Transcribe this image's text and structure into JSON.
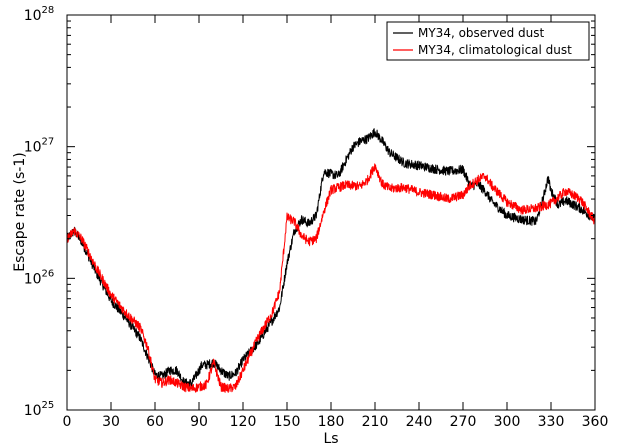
{
  "chart_data": {
    "type": "line",
    "xlabel": "Ls",
    "ylabel": "Escape rate (s-1)",
    "xlim": [
      0,
      360
    ],
    "ylim": [
      1e+25,
      1e+28
    ],
    "yscale": "log",
    "x_ticks": [
      0,
      30,
      60,
      90,
      120,
      150,
      180,
      210,
      240,
      270,
      300,
      330,
      360
    ],
    "y_ticks": [
      {
        "value": 1e+25,
        "base": "10",
        "exp": "25"
      },
      {
        "value": 1e+26,
        "base": "10",
        "exp": "26"
      },
      {
        "value": 1e+27,
        "base": "10",
        "exp": "27"
      },
      {
        "value": 1e+28,
        "base": "10",
        "exp": "28"
      }
    ],
    "grid": false,
    "legend_position": "top-right",
    "series": [
      {
        "name": "MY34, observed dust",
        "color": "#000000",
        "x": [
          0,
          5,
          10,
          20,
          30,
          40,
          50,
          60,
          65,
          70,
          75,
          80,
          85,
          90,
          92,
          95,
          100,
          105,
          110,
          115,
          120,
          130,
          140,
          145,
          150,
          155,
          160,
          165,
          170,
          175,
          180,
          185,
          190,
          195,
          200,
          205,
          210,
          215,
          220,
          230,
          240,
          250,
          260,
          270,
          275,
          280,
          285,
          290,
          300,
          310,
          320,
          325,
          328,
          330,
          335,
          340,
          350,
          360
        ],
        "y": [
          2e+26,
          2.3e+26,
          1.9e+26,
          1.1e+26,
          6.8e+25,
          5e+25,
          3.5e+25,
          1.85e+25,
          1.8e+25,
          2e+25,
          2e+25,
          1.6e+25,
          1.6e+25,
          2e+25,
          2.2e+25,
          2.2e+25,
          2.3e+25,
          2e+25,
          1.8e+25,
          1.9e+25,
          2.4e+25,
          3.2e+25,
          4.8e+25,
          6e+25,
          1.3e+26,
          2.3e+26,
          2.8e+26,
          2.6e+26,
          3e+26,
          6.5e+26,
          6.2e+26,
          6e+26,
          7.8e+26,
          1e+27,
          1.1e+27,
          1.15e+27,
          1.3e+27,
          1.1e+27,
          9e+26,
          7.5e+26,
          7.2e+26,
          6.8e+26,
          6.5e+26,
          6.7e+26,
          5e+26,
          5.2e+26,
          4.6e+26,
          3.8e+26,
          3e+26,
          2.8e+26,
          2.7e+26,
          4.2e+26,
          5.8e+26,
          4.6e+26,
          3.6e+26,
          3.9e+26,
          3.4e+26,
          2.8e+26
        ]
      },
      {
        "name": "MY34, climatological dust",
        "color": "#ff0000",
        "x": [
          0,
          5,
          10,
          20,
          30,
          40,
          50,
          55,
          60,
          65,
          70,
          75,
          80,
          85,
          90,
          95,
          100,
          105,
          110,
          115,
          120,
          130,
          140,
          145,
          150,
          155,
          160,
          165,
          170,
          175,
          180,
          190,
          200,
          205,
          210,
          215,
          220,
          230,
          240,
          250,
          260,
          270,
          275,
          280,
          285,
          290,
          300,
          310,
          320,
          330,
          340,
          350,
          360
        ],
        "y": [
          2e+26,
          2.3e+26,
          2e+26,
          1.2e+26,
          7.5e+25,
          5.5e+25,
          4.2e+25,
          3e+25,
          1.7e+25,
          1.6e+25,
          1.7e+25,
          1.6e+25,
          1.5e+25,
          1.45e+25,
          1.5e+25,
          1.55e+25,
          2.3e+25,
          1.5e+25,
          1.45e+25,
          1.5e+25,
          2e+25,
          3.5e+25,
          5.5e+25,
          8e+25,
          2.9e+26,
          2.7e+26,
          2.1e+26,
          1.9e+26,
          2e+26,
          3.2e+26,
          4.7e+26,
          5.1e+26,
          5e+26,
          5.6e+26,
          7.2e+26,
          5.2e+26,
          4.8e+26,
          4.9e+26,
          4.5e+26,
          4.3e+26,
          4e+26,
          4.3e+26,
          5.1e+26,
          5.6e+26,
          6e+26,
          5e+26,
          3.8e+26,
          3.3e+26,
          3.4e+26,
          3.7e+26,
          4.6e+26,
          4e+26,
          2.7e+26
        ]
      }
    ]
  }
}
